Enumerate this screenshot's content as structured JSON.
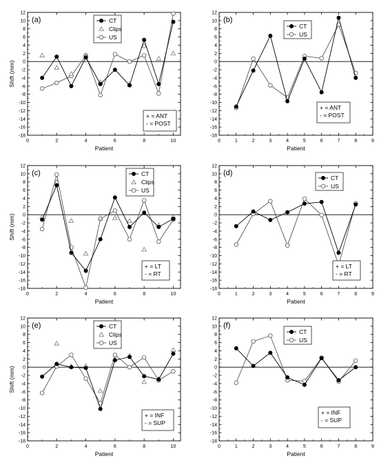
{
  "chart_data": [
    {
      "type": "line",
      "panel_label": "(a)",
      "xlabel": "Patient",
      "ylabel": "Shift (mm)",
      "xlim": [
        0,
        10.5
      ],
      "ylim": [
        -18,
        12
      ],
      "x_ticks": [
        "0",
        "2",
        "4",
        "6",
        "8",
        "10"
      ],
      "y_ticks": [
        "12",
        "10",
        "8",
        "6",
        "4",
        "2",
        "0",
        "-2",
        "-4",
        "-6",
        "-8",
        "-10",
        "-12",
        "-14",
        "-16",
        "-18"
      ],
      "legend_position": "top-right",
      "note": [
        "+ = ANT",
        "- = POST"
      ],
      "series": [
        {
          "name": "CT",
          "marker": "filled-circle",
          "x": [
            1,
            2,
            3,
            4,
            5,
            6,
            7,
            8,
            9,
            10
          ],
          "values": [
            -4,
            1.2,
            -6,
            1,
            -5.5,
            -2,
            -5.8,
            5.3,
            -5.5,
            9.7
          ]
        },
        {
          "name": "Clips",
          "marker": "triangle",
          "x": [
            1,
            2,
            3,
            4,
            5,
            6,
            7,
            8,
            9,
            10
          ],
          "values": [
            1.5,
            -1.5,
            -3,
            1.5,
            -5,
            null,
            -5.5,
            3.8,
            0.7,
            2
          ]
        },
        {
          "name": "US",
          "marker": "open-circle",
          "x": [
            1,
            2,
            3,
            4,
            5,
            6,
            7,
            8,
            9,
            10
          ],
          "values": [
            -6.6,
            -5.2,
            -3.5,
            1.5,
            -8.2,
            1.8,
            0,
            1.5,
            -7.8,
            11.7
          ]
        }
      ]
    },
    {
      "type": "line",
      "panel_label": "(b)",
      "xlabel": "Patient",
      "ylabel": "",
      "xlim": [
        0,
        9
      ],
      "ylim": [
        -18,
        12
      ],
      "x_ticks": [
        "0",
        "1",
        "2",
        "3",
        "4",
        "5",
        "6",
        "7",
        "8",
        "9"
      ],
      "y_ticks": [
        "12",
        "10",
        "8",
        "6",
        "4",
        "2",
        "0",
        "-2",
        "-4",
        "-6",
        "-8",
        "-10",
        "-12",
        "-14",
        "-16",
        "-18"
      ],
      "legend_position": "top-right",
      "note": [
        "+ = ANT",
        "- = POST"
      ],
      "series": [
        {
          "name": "CT",
          "marker": "filled-circle",
          "x": [
            1,
            2,
            3,
            4,
            5,
            6,
            7,
            8
          ],
          "values": [
            -11,
            -2.2,
            6.3,
            -9.7,
            0.7,
            -7.5,
            10.7,
            -4
          ]
        },
        {
          "name": "US",
          "marker": "open-circle",
          "x": [
            1,
            2,
            3,
            4,
            5,
            6,
            7,
            8
          ],
          "values": [
            -11.3,
            0.7,
            -5.8,
            -8.8,
            1.3,
            0.8,
            9,
            -2.8
          ]
        }
      ]
    },
    {
      "type": "line",
      "panel_label": "(c)",
      "xlabel": "Patient",
      "ylabel": "Shift (mm)",
      "xlim": [
        0,
        10.5
      ],
      "ylim": [
        -18,
        12
      ],
      "x_ticks": [
        "0",
        "2",
        "4",
        "6",
        "8",
        "10"
      ],
      "y_ticks": [
        "12",
        "10",
        "8",
        "6",
        "4",
        "2",
        "0",
        "-2",
        "-4",
        "-6",
        "-8",
        "-10",
        "-12",
        "-14",
        "-16",
        "-18"
      ],
      "legend_position": "top-right",
      "note": [
        "+ = LT",
        "- = RT"
      ],
      "series": [
        {
          "name": "CT",
          "marker": "filled-circle",
          "x": [
            1,
            2,
            3,
            4,
            5,
            6,
            7,
            8,
            9,
            10
          ],
          "values": [
            -1.2,
            7.2,
            -9.3,
            -13.7,
            -6,
            4.2,
            -3,
            0.5,
            -3,
            -1
          ]
        },
        {
          "name": "Clips",
          "marker": "triangle",
          "x": [
            1,
            2,
            3,
            4,
            5,
            6,
            7,
            8,
            9,
            10
          ],
          "values": [
            -0.5,
            8,
            -1.5,
            -9.5,
            -0.8,
            -0.8,
            -1.5,
            -8.5,
            -2.5,
            -0.5
          ]
        },
        {
          "name": "US",
          "marker": "open-circle",
          "x": [
            1,
            2,
            3,
            4,
            5,
            6,
            7,
            8,
            9,
            10
          ],
          "values": [
            -3.5,
            9.8,
            -8,
            -17.8,
            -1,
            1,
            -6,
            3.5,
            -6.6,
            -1.2
          ]
        }
      ]
    },
    {
      "type": "line",
      "panel_label": "(d)",
      "xlabel": "Patient",
      "ylabel": "",
      "xlim": [
        0,
        9
      ],
      "ylim": [
        -18,
        12
      ],
      "x_ticks": [
        "0",
        "1",
        "2",
        "3",
        "4",
        "5",
        "6",
        "7",
        "8",
        "9"
      ],
      "y_ticks": [
        "12",
        "10",
        "8",
        "6",
        "4",
        "2",
        "0",
        "-2",
        "-4",
        "-6",
        "-8",
        "-10",
        "-12",
        "-14",
        "-16",
        "-18"
      ],
      "legend_position": "top-right",
      "note": [
        "+ = LT",
        "- = RT"
      ],
      "series": [
        {
          "name": "CT",
          "marker": "filled-circle",
          "x": [
            1,
            2,
            3,
            4,
            5,
            6,
            7,
            8
          ],
          "values": [
            -2.8,
            0.8,
            -1.3,
            0.6,
            2.7,
            3.1,
            -9.3,
            2.5
          ]
        },
        {
          "name": "US",
          "marker": "open-circle",
          "x": [
            1,
            2,
            3,
            4,
            5,
            6,
            7,
            8
          ],
          "values": [
            -7.3,
            0.2,
            3.3,
            -7.5,
            3.9,
            -0.1,
            -12.3,
            2.8
          ]
        }
      ]
    },
    {
      "type": "line",
      "panel_label": "(e)",
      "xlabel": "Patient",
      "ylabel": "Shift (mm)",
      "xlim": [
        0,
        10.5
      ],
      "ylim": [
        -18,
        12
      ],
      "x_ticks": [
        "0",
        "2",
        "4",
        "6",
        "8",
        "10"
      ],
      "y_ticks": [
        "12",
        "10",
        "8",
        "6",
        "4",
        "2",
        "0",
        "-2",
        "-4",
        "-6",
        "-8",
        "-10",
        "-12",
        "-14",
        "-16",
        "-18"
      ],
      "legend_position": "top-right",
      "note": [
        "+ = INF",
        "- = SUP"
      ],
      "series": [
        {
          "name": "CT",
          "marker": "filled-circle",
          "x": [
            1,
            2,
            3,
            4,
            5,
            6,
            7,
            8,
            9,
            10
          ],
          "values": [
            -2.3,
            0.8,
            0,
            -0.2,
            -10.2,
            1.7,
            2.5,
            -2.2,
            -3,
            3.3
          ]
        },
        {
          "name": "Clips",
          "marker": "triangle",
          "x": [
            1,
            2,
            3,
            4,
            5,
            6,
            7,
            8,
            9,
            10
          ],
          "values": [
            null,
            5.8,
            0.2,
            0.3,
            -5.8,
            2,
            2.8,
            -3.6,
            -2.8,
            4.2
          ]
        },
        {
          "name": "US",
          "marker": "open-circle",
          "x": [
            1,
            2,
            3,
            4,
            5,
            6,
            7,
            8,
            9,
            10
          ],
          "values": [
            -6.3,
            0.2,
            3,
            -2.8,
            -8.8,
            3,
            0,
            2.4,
            -3.2,
            -1
          ]
        }
      ]
    },
    {
      "type": "line",
      "panel_label": "(f)",
      "xlabel": "Patient",
      "ylabel": "",
      "xlim": [
        0,
        9
      ],
      "ylim": [
        -18,
        12
      ],
      "x_ticks": [
        "0",
        "1",
        "2",
        "3",
        "4",
        "5",
        "6",
        "7",
        "8",
        "9"
      ],
      "y_ticks": [
        "12",
        "10",
        "8",
        "6",
        "4",
        "2",
        "0",
        "-2",
        "-4",
        "-6",
        "-8",
        "-10",
        "-12",
        "-14",
        "-16",
        "-18"
      ],
      "legend_position": "top-right",
      "note": [
        "+ = INF",
        "- = SUP"
      ],
      "series": [
        {
          "name": "CT",
          "marker": "filled-circle",
          "x": [
            1,
            2,
            3,
            4,
            5,
            6,
            7,
            8
          ],
          "values": [
            4.6,
            0.3,
            3.5,
            -2.5,
            -4.3,
            2.2,
            -3.2,
            0
          ]
        },
        {
          "name": "US",
          "marker": "open-circle",
          "x": [
            1,
            2,
            3,
            4,
            5,
            6,
            7,
            8
          ],
          "values": [
            -3.8,
            6.3,
            7.7,
            -3.2,
            -3.4,
            2.3,
            -3.5,
            1.6
          ]
        }
      ]
    }
  ]
}
